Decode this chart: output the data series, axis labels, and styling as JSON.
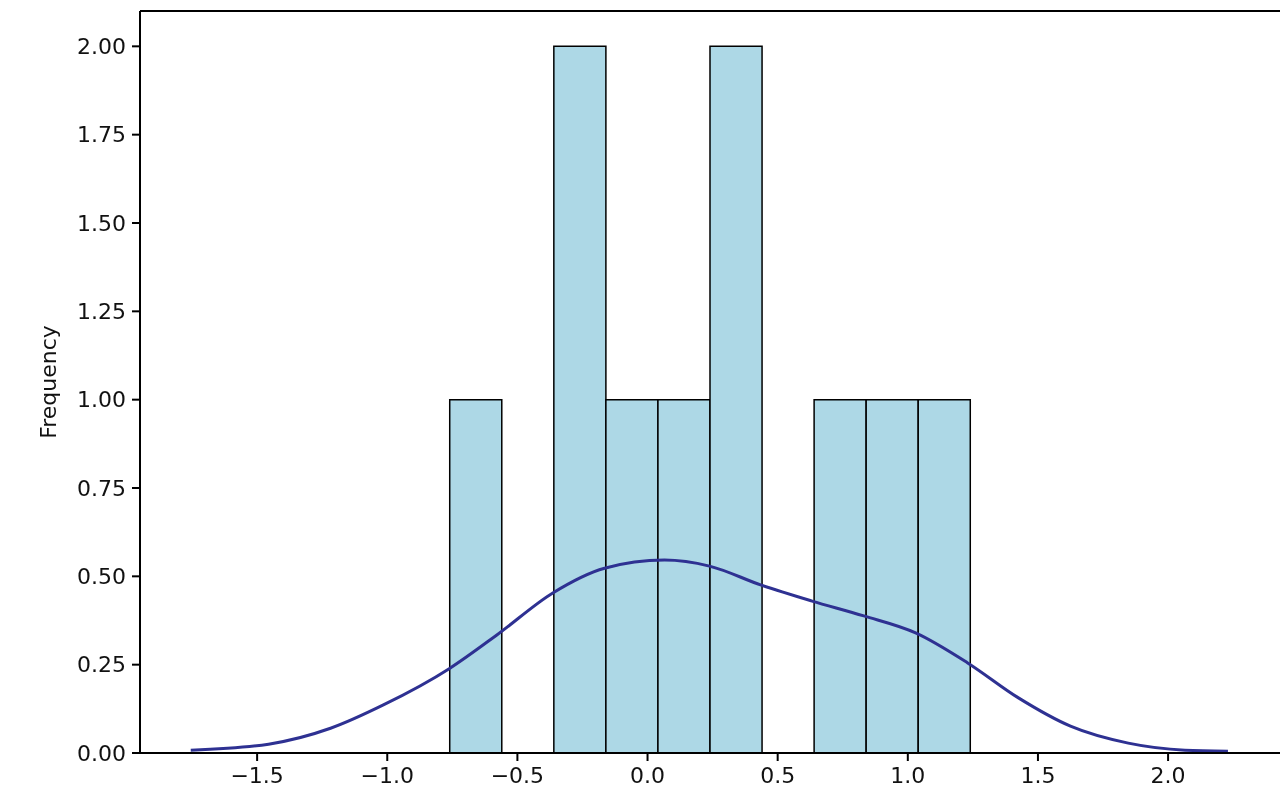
{
  "chart_data": {
    "type": "histogram",
    "ylabel": "Frequency",
    "bins": [
      -0.76,
      -0.56,
      -0.36,
      -0.16,
      0.04,
      0.24,
      0.44,
      0.64,
      0.84,
      1.04,
      1.24
    ],
    "values": [
      1,
      0,
      2,
      1,
      1,
      2,
      0,
      1,
      1,
      1
    ],
    "color": "#add8e6",
    "series": [
      {
        "type": "line",
        "color": "#2e3192",
        "x": [
          -1.755,
          -1.456,
          -1.218,
          -1.015,
          -0.759,
          -0.579,
          -0.364,
          -0.165,
          0.065,
          0.238,
          0.437,
          0.632,
          0.831,
          1.03,
          1.23,
          1.425,
          1.625,
          1.847,
          2.065,
          2.23
        ],
        "values": [
          0.008,
          0.025,
          0.07,
          0.136,
          0.24,
          0.334,
          0.453,
          0.523,
          0.546,
          0.529,
          0.475,
          0.43,
          0.388,
          0.34,
          0.255,
          0.156,
          0.076,
          0.028,
          0.008,
          0.005
        ]
      }
    ],
    "xlim": [
      -1.95,
      2.43
    ],
    "xticks": [
      {
        "value": -1.5,
        "label": "−1.5"
      },
      {
        "value": -1,
        "label": "−1.0"
      },
      {
        "value": -0.5,
        "label": "−0.5"
      },
      {
        "value": 0,
        "label": "0.0"
      },
      {
        "value": 0.5,
        "label": "0.5"
      },
      {
        "value": 1,
        "label": "1.0"
      },
      {
        "value": 1.5,
        "label": "1.5"
      },
      {
        "value": 2,
        "label": "2.0"
      }
    ],
    "ylim": [
      0,
      2.1
    ],
    "yticks": [
      {
        "value": 0,
        "label": "0.00"
      },
      {
        "value": 0.25,
        "label": "0.25"
      },
      {
        "value": 0.5,
        "label": "0.50"
      },
      {
        "value": 0.75,
        "label": "0.75"
      },
      {
        "value": 1,
        "label": "1.00"
      },
      {
        "value": 1.25,
        "label": "1.25"
      },
      {
        "value": 1.5,
        "label": "1.50"
      },
      {
        "value": 1.75,
        "label": "1.75"
      },
      {
        "value": 2,
        "label": "2.00"
      }
    ],
    "grid": false,
    "legend": false
  }
}
